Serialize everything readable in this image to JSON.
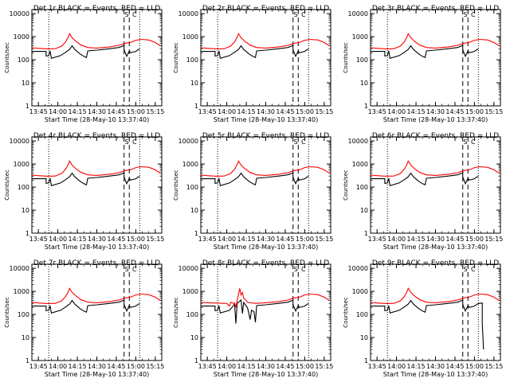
{
  "chart_data": [
    {
      "type": "line",
      "title": "Det 1r BLACK = Events, RED = LLD",
      "xlabel": "Start Time (28-May-10 13:37:40)",
      "ylabel": "Counts/sec",
      "yscale": "log",
      "ylim": [
        1,
        15000
      ],
      "xticks": [
        "13:45",
        "14:00",
        "14:15",
        "14:30",
        "14:45",
        "15:00",
        "15:15"
      ],
      "yticks": [
        "1",
        "10",
        "100",
        "1000",
        "10000"
      ],
      "vlines_dotted": [
        "13:53",
        "15:03"
      ],
      "vlines_dashed": [
        "14:51",
        "14:55"
      ],
      "markers": [
        "S",
        "C"
      ],
      "series": [
        {
          "name": "Events",
          "color": "#000000",
          "variant": "normal"
        },
        {
          "name": "LLD",
          "color": "#ff0000",
          "variant": "normal"
        }
      ]
    },
    {
      "type": "line",
      "title": "Det 2r BLACK = Events, RED = LLD",
      "xlabel": "Start Time (28-May-10 13:37:40)",
      "ylabel": "Counts/sec",
      "yscale": "log",
      "ylim": [
        1,
        15000
      ],
      "xticks": [
        "13:45",
        "14:00",
        "14:15",
        "14:30",
        "14:45",
        "15:00",
        "15:15"
      ],
      "yticks": [
        "1",
        "10",
        "100",
        "1000",
        "10000"
      ],
      "vlines_dotted": [
        "13:53",
        "15:03"
      ],
      "vlines_dashed": [
        "14:51",
        "14:55"
      ],
      "markers": [
        "S",
        "C"
      ],
      "series": [
        {
          "name": "Events",
          "color": "#000000",
          "variant": "normal"
        },
        {
          "name": "LLD",
          "color": "#ff0000",
          "variant": "normal"
        }
      ]
    },
    {
      "type": "line",
      "title": "Det 3r BLACK = Events, RED = LLD",
      "xlabel": "Start Time (28-May-10 13:37:40)",
      "ylabel": "Counts/sec",
      "yscale": "log",
      "ylim": [
        1,
        15000
      ],
      "xticks": [
        "13:45",
        "14:00",
        "14:15",
        "14:30",
        "14:45",
        "15:00",
        "15:15"
      ],
      "yticks": [
        "1",
        "10",
        "100",
        "1000",
        "10000"
      ],
      "vlines_dotted": [
        "13:53",
        "15:03"
      ],
      "vlines_dashed": [
        "14:51",
        "14:55"
      ],
      "markers": [
        "S",
        "C"
      ],
      "series": [
        {
          "name": "Events",
          "color": "#000000",
          "variant": "normal"
        },
        {
          "name": "LLD",
          "color": "#ff0000",
          "variant": "normal"
        }
      ]
    },
    {
      "type": "line",
      "title": "Det 4r BLACK = Events, RED = LLD",
      "xlabel": "Start Time (28-May-10 13:37:40)",
      "ylabel": "Counts/sec",
      "yscale": "log",
      "ylim": [
        1,
        15000
      ],
      "xticks": [
        "13:45",
        "14:00",
        "14:15",
        "14:30",
        "14:45",
        "15:00",
        "15:15"
      ],
      "yticks": [
        "1",
        "10",
        "100",
        "1000",
        "10000"
      ],
      "vlines_dotted": [
        "13:53",
        "15:03"
      ],
      "vlines_dashed": [
        "14:51",
        "14:55"
      ],
      "markers": [
        "S",
        "C"
      ],
      "series": [
        {
          "name": "Events",
          "color": "#000000",
          "variant": "normal"
        },
        {
          "name": "LLD",
          "color": "#ff0000",
          "variant": "normal"
        }
      ]
    },
    {
      "type": "line",
      "title": "Det 5r BLACK = Events, RED = LLD",
      "xlabel": "Start Time (28-May-10 13:37:40)",
      "ylabel": "Counts/sec",
      "yscale": "log",
      "ylim": [
        1,
        15000
      ],
      "xticks": [
        "13:45",
        "14:00",
        "14:15",
        "14:30",
        "14:45",
        "15:00",
        "15:15"
      ],
      "yticks": [
        "1",
        "10",
        "100",
        "1000",
        "10000"
      ],
      "vlines_dotted": [
        "13:53",
        "15:03"
      ],
      "vlines_dashed": [
        "14:51",
        "14:55"
      ],
      "markers": [
        "S",
        "C"
      ],
      "series": [
        {
          "name": "Events",
          "color": "#000000",
          "variant": "normal"
        },
        {
          "name": "LLD",
          "color": "#ff0000",
          "variant": "normal"
        }
      ]
    },
    {
      "type": "line",
      "title": "Det 6r BLACK = Events, RED = LLD",
      "xlabel": "Start Time (28-May-10 13:37:40)",
      "ylabel": "Counts/sec",
      "yscale": "log",
      "ylim": [
        1,
        15000
      ],
      "xticks": [
        "13:45",
        "14:00",
        "14:15",
        "14:30",
        "14:45",
        "15:00",
        "15:15"
      ],
      "yticks": [
        "1",
        "10",
        "100",
        "1000",
        "10000"
      ],
      "vlines_dotted": [
        "13:53",
        "15:03"
      ],
      "vlines_dashed": [
        "14:51",
        "14:55"
      ],
      "markers": [
        "S",
        "C"
      ],
      "series": [
        {
          "name": "Events",
          "color": "#000000",
          "variant": "normal"
        },
        {
          "name": "LLD",
          "color": "#ff0000",
          "variant": "normal"
        }
      ]
    },
    {
      "type": "line",
      "title": "Det 7r BLACK = Events, RED = LLD",
      "xlabel": "Start Time (28-May-10 13:37:40)",
      "ylabel": "Counts/sec",
      "yscale": "log",
      "ylim": [
        1,
        15000
      ],
      "xticks": [
        "13:45",
        "14:00",
        "14:15",
        "14:30",
        "14:45",
        "15:00",
        "15:15"
      ],
      "yticks": [
        "1",
        "10",
        "100",
        "1000",
        "10000"
      ],
      "vlines_dotted": [
        "13:53",
        "15:03"
      ],
      "vlines_dashed": [
        "14:51",
        "14:55"
      ],
      "markers": [
        "S",
        "C"
      ],
      "series": [
        {
          "name": "Events",
          "color": "#000000",
          "variant": "normal"
        },
        {
          "name": "LLD",
          "color": "#ff0000",
          "variant": "normal"
        }
      ]
    },
    {
      "type": "line",
      "title": "Det 8r BLACK = Events, RED = LLD",
      "xlabel": "Start Time (28-May-10 13:37:40)",
      "ylabel": "Counts/sec",
      "yscale": "log",
      "ylim": [
        1,
        15000
      ],
      "xticks": [
        "13:45",
        "14:00",
        "14:15",
        "14:30",
        "14:45",
        "15:00",
        "15:15"
      ],
      "yticks": [
        "1",
        "10",
        "100",
        "1000",
        "10000"
      ],
      "vlines_dotted": [
        "13:53",
        "15:03"
      ],
      "vlines_dashed": [
        "14:51",
        "14:55"
      ],
      "markers": [
        "S",
        "C"
      ],
      "series": [
        {
          "name": "Events",
          "color": "#000000",
          "variant": "spiky"
        },
        {
          "name": "LLD",
          "color": "#ff0000",
          "variant": "spiky"
        }
      ]
    },
    {
      "type": "line",
      "title": "Det 9r BLACK = Events, RED = LLD",
      "xlabel": "Start Time (28-May-10 13:37:40)",
      "ylabel": "Counts/sec",
      "yscale": "log",
      "ylim": [
        1,
        15000
      ],
      "xticks": [
        "13:45",
        "14:00",
        "14:15",
        "14:30",
        "14:45",
        "15:00",
        "15:15"
      ],
      "yticks": [
        "1",
        "10",
        "100",
        "1000",
        "10000"
      ],
      "vlines_dotted": [
        "13:53",
        "15:03"
      ],
      "vlines_dashed": [
        "14:51",
        "14:55"
      ],
      "markers": [
        "S",
        "C"
      ],
      "series": [
        {
          "name": "Events",
          "color": "#000000",
          "variant": "drop"
        },
        {
          "name": "LLD",
          "color": "#ff0000",
          "variant": "normal"
        }
      ]
    }
  ],
  "profiles": {
    "black_normal": [
      [
        "13:40",
        230
      ],
      [
        "13:50",
        230
      ],
      [
        "13:51",
        230
      ],
      [
        "13:51",
        145
      ],
      [
        "13:53",
        150
      ],
      [
        "13:54",
        240
      ],
      [
        "13:55",
        115
      ],
      [
        "14:02",
        150
      ],
      [
        "14:06",
        210
      ],
      [
        "14:09",
        280
      ],
      [
        "14:11",
        400
      ],
      [
        "14:13",
        280
      ],
      [
        "14:17",
        180
      ],
      [
        "14:20",
        140
      ],
      [
        "14:22",
        125
      ],
      [
        "14:23",
        240
      ],
      [
        "14:30",
        260
      ],
      [
        "14:40",
        300
      ],
      [
        "14:47",
        340
      ],
      [
        "14:50",
        390
      ],
      [
        "14:51",
        420
      ],
      [
        "14:51",
        270
      ],
      [
        "14:53",
        140
      ],
      [
        "14:55",
        240
      ],
      [
        "14:56",
        200
      ],
      [
        "15:00",
        230
      ],
      [
        "15:02",
        280
      ],
      [
        "15:03",
        290
      ]
    ],
    "black_spiky": [
      [
        "13:40",
        230
      ],
      [
        "13:50",
        230
      ],
      [
        "13:51",
        230
      ],
      [
        "13:51",
        145
      ],
      [
        "13:53",
        150
      ],
      [
        "13:54",
        240
      ],
      [
        "13:55",
        115
      ],
      [
        "14:02",
        150
      ],
      [
        "14:04",
        200
      ],
      [
        "14:06",
        280
      ],
      [
        "14:07",
        40
      ],
      [
        "14:08",
        300
      ],
      [
        "14:11",
        420
      ],
      [
        "14:12",
        110
      ],
      [
        "14:13",
        330
      ],
      [
        "14:16",
        190
      ],
      [
        "14:18",
        60
      ],
      [
        "14:19",
        150
      ],
      [
        "14:21",
        130
      ],
      [
        "14:22",
        45
      ],
      [
        "14:23",
        240
      ],
      [
        "14:30",
        260
      ],
      [
        "14:40",
        300
      ],
      [
        "14:47",
        340
      ],
      [
        "14:50",
        390
      ],
      [
        "14:51",
        420
      ],
      [
        "14:51",
        270
      ],
      [
        "14:53",
        140
      ],
      [
        "14:55",
        240
      ],
      [
        "14:56",
        200
      ],
      [
        "15:00",
        230
      ],
      [
        "15:02",
        280
      ],
      [
        "15:03",
        290
      ]
    ],
    "black_drop": [
      [
        "13:40",
        230
      ],
      [
        "13:50",
        230
      ],
      [
        "13:51",
        230
      ],
      [
        "13:51",
        145
      ],
      [
        "13:53",
        150
      ],
      [
        "13:54",
        240
      ],
      [
        "13:55",
        115
      ],
      [
        "14:02",
        150
      ],
      [
        "14:06",
        210
      ],
      [
        "14:09",
        280
      ],
      [
        "14:11",
        400
      ],
      [
        "14:13",
        280
      ],
      [
        "14:17",
        180
      ],
      [
        "14:20",
        140
      ],
      [
        "14:22",
        125
      ],
      [
        "14:23",
        240
      ],
      [
        "14:30",
        260
      ],
      [
        "14:40",
        300
      ],
      [
        "14:47",
        340
      ],
      [
        "14:50",
        390
      ],
      [
        "14:51",
        420
      ],
      [
        "14:51",
        270
      ],
      [
        "14:53",
        140
      ],
      [
        "14:55",
        240
      ],
      [
        "14:56",
        200
      ],
      [
        "15:00",
        230
      ],
      [
        "15:02",
        280
      ],
      [
        "15:04",
        300
      ],
      [
        "15:06",
        310
      ],
      [
        "15:06",
        40
      ],
      [
        "15:07",
        3
      ]
    ],
    "red_normal": [
      [
        "13:40",
        330
      ],
      [
        "13:46",
        310
      ],
      [
        "13:52",
        295
      ],
      [
        "13:58",
        300
      ],
      [
        "14:03",
        390
      ],
      [
        "14:06",
        600
      ],
      [
        "14:08",
        950
      ],
      [
        "14:09",
        1350
      ],
      [
        "14:11",
        900
      ],
      [
        "14:14",
        620
      ],
      [
        "14:18",
        430
      ],
      [
        "14:23",
        340
      ],
      [
        "14:30",
        320
      ],
      [
        "14:40",
        360
      ],
      [
        "14:47",
        420
      ],
      [
        "14:52",
        520
      ],
      [
        "14:56",
        560
      ],
      [
        "15:00",
        700
      ],
      [
        "15:04",
        760
      ],
      [
        "15:10",
        720
      ],
      [
        "15:15",
        560
      ],
      [
        "15:19",
        400
      ]
    ],
    "red_spiky": [
      [
        "13:40",
        330
      ],
      [
        "13:46",
        320
      ],
      [
        "13:52",
        310
      ],
      [
        "13:57",
        300
      ],
      [
        "14:00",
        300
      ],
      [
        "14:02",
        230
      ],
      [
        "14:03",
        330
      ],
      [
        "14:05",
        300
      ],
      [
        "14:06",
        320
      ],
      [
        "14:07",
        200
      ],
      [
        "14:08",
        400
      ],
      [
        "14:10",
        1350
      ],
      [
        "14:11",
        700
      ],
      [
        "14:12",
        900
      ],
      [
        "14:13",
        500
      ],
      [
        "14:15",
        400
      ],
      [
        "14:16",
        330
      ],
      [
        "14:20",
        310
      ],
      [
        "14:23",
        300
      ],
      [
        "14:30",
        320
      ],
      [
        "14:40",
        360
      ],
      [
        "14:47",
        420
      ],
      [
        "14:52",
        520
      ],
      [
        "14:56",
        560
      ],
      [
        "15:00",
        700
      ],
      [
        "15:04",
        760
      ],
      [
        "15:10",
        720
      ],
      [
        "15:15",
        560
      ],
      [
        "15:19",
        400
      ]
    ]
  }
}
